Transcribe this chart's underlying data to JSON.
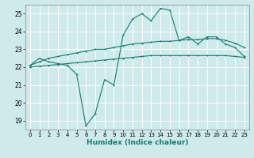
{
  "xlabel": "Humidex (Indice chaleur)",
  "xlim": [
    -0.5,
    23.5
  ],
  "ylim": [
    18.5,
    25.5
  ],
  "yticks": [
    19,
    20,
    21,
    22,
    23,
    24,
    25
  ],
  "xticks": [
    0,
    1,
    2,
    3,
    4,
    5,
    6,
    7,
    8,
    9,
    10,
    11,
    12,
    13,
    14,
    15,
    16,
    17,
    18,
    19,
    20,
    21,
    22,
    23
  ],
  "background_color": "#ceeaea",
  "grid_color": "#ffffff",
  "line_color": "#1a7a6e",
  "line1_y": [
    22.1,
    22.5,
    22.3,
    22.2,
    22.1,
    21.6,
    18.7,
    19.4,
    21.3,
    21.0,
    23.8,
    24.7,
    25.0,
    24.6,
    25.3,
    25.2,
    23.5,
    23.7,
    23.3,
    23.7,
    23.7,
    23.3,
    23.1,
    22.6
  ],
  "line2_y": [
    22.1,
    22.3,
    22.5,
    22.6,
    22.7,
    22.8,
    22.9,
    23.0,
    23.0,
    23.1,
    23.2,
    23.3,
    23.35,
    23.4,
    23.45,
    23.45,
    23.5,
    23.55,
    23.55,
    23.6,
    23.6,
    23.5,
    23.35,
    23.1
  ],
  "line3_y": [
    22.0,
    22.05,
    22.1,
    22.15,
    22.2,
    22.25,
    22.3,
    22.35,
    22.4,
    22.45,
    22.5,
    22.55,
    22.6,
    22.65,
    22.65,
    22.65,
    22.65,
    22.65,
    22.65,
    22.65,
    22.65,
    22.65,
    22.6,
    22.55
  ]
}
